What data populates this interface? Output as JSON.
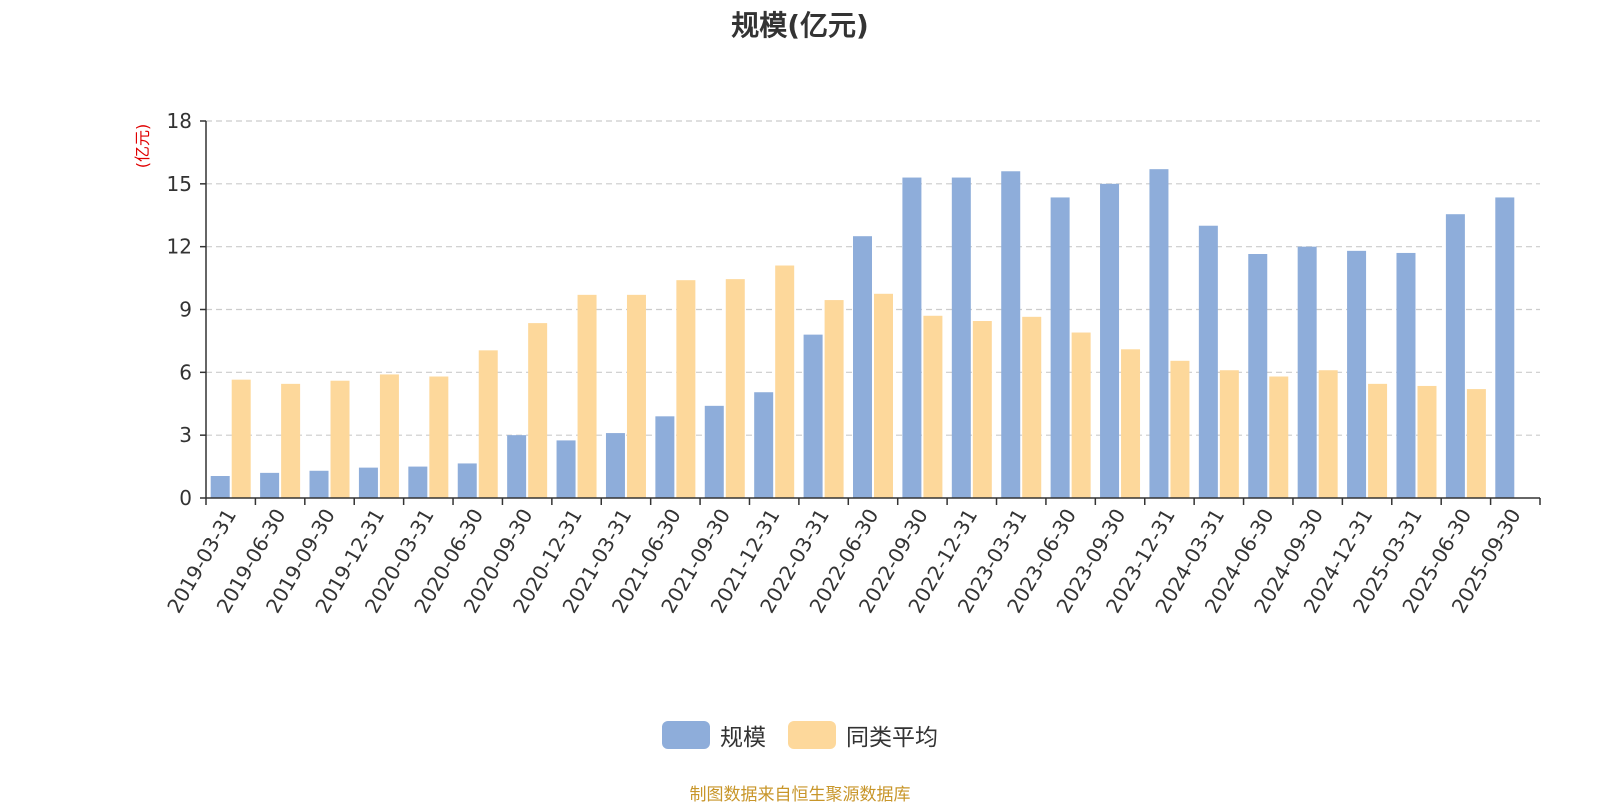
{
  "chart_data": {
    "type": "bar",
    "title": "规模(亿元)",
    "ylabel": "(亿元)",
    "xlabel": "",
    "ylim": [
      0,
      18
    ],
    "yticks": [
      0,
      3,
      6,
      9,
      12,
      15,
      18
    ],
    "grid": true,
    "legend_position": "bottom",
    "categories": [
      "2019-03-31",
      "2019-06-30",
      "2019-09-30",
      "2019-12-31",
      "2020-03-31",
      "2020-06-30",
      "2020-09-30",
      "2020-12-31",
      "2021-03-31",
      "2021-06-30",
      "2021-09-30",
      "2021-12-31",
      "2022-03-31",
      "2022-06-30",
      "2022-09-30",
      "2022-12-31",
      "2023-03-31",
      "2023-06-30",
      "2023-09-30",
      "2023-12-31",
      "2024-03-31",
      "2024-06-30",
      "2024-09-30",
      "2024-12-31",
      "2025-03-31",
      "2025-06-30",
      "2025-09-30"
    ],
    "series": [
      {
        "name": "规模",
        "color": "#8eadda",
        "values": [
          1.05,
          1.2,
          1.3,
          1.45,
          1.5,
          1.65,
          3.0,
          2.75,
          3.1,
          3.9,
          4.4,
          5.05,
          7.8,
          12.5,
          15.3,
          15.3,
          15.6,
          14.35,
          15.0,
          15.7,
          13.0,
          11.65,
          12.0,
          11.8,
          11.7,
          13.55,
          14.35
        ]
      },
      {
        "name": "同类平均",
        "color": "#fdd89b",
        "values": [
          5.65,
          5.45,
          5.6,
          5.9,
          5.8,
          7.05,
          8.35,
          9.7,
          9.7,
          10.4,
          10.45,
          11.1,
          9.45,
          9.75,
          8.7,
          8.45,
          8.65,
          7.9,
          7.1,
          6.55,
          6.1,
          5.8,
          6.1,
          5.45,
          5.35,
          5.2,
          null
        ]
      }
    ]
  },
  "source_note": "制图数据来自恒生聚源数据库"
}
